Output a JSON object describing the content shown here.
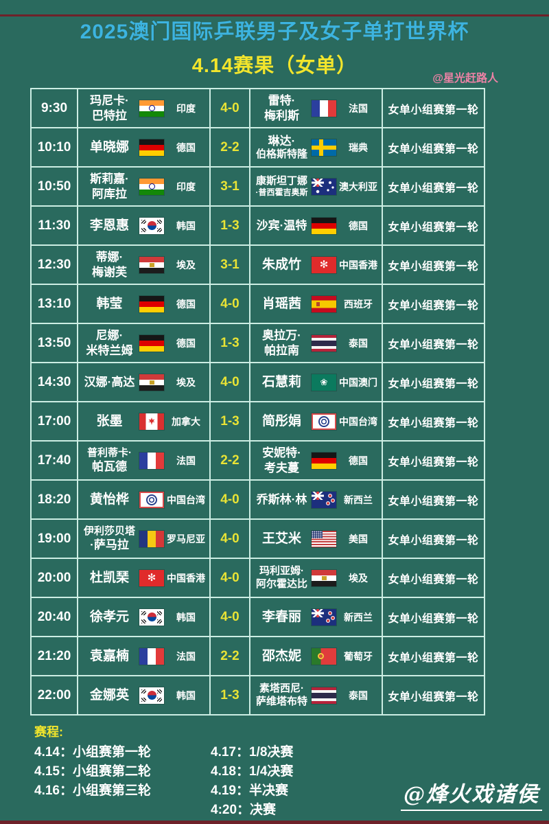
{
  "page": {
    "title": "2025澳门国际乒联男子及女子单打世界杯",
    "subtitle": "4.14赛果（女单）",
    "watermark_top": "@星光赶路人",
    "watermark_bottom": "@烽火戏诸侯"
  },
  "colors": {
    "background": "#2a6a5e",
    "title": "#3cb4e0",
    "subtitle": "#f2e52c",
    "score": "#e9e335",
    "watermark_top": "#ee82a6",
    "table_border": "#cdeee4",
    "edge_bar": "#6e2129"
  },
  "flag_names": {
    "in": "india-flag",
    "fr": "france-flag",
    "de": "germany-flag",
    "se": "sweden-flag",
    "au": "australia-flag",
    "kr": "south-korea-flag",
    "eg": "egypt-flag",
    "hk": "hong-kong-flag",
    "es": "spain-flag",
    "th": "thailand-flag",
    "mo": "macau-flag",
    "ca": "canada-flag",
    "tw": "chinese-taipei-flag",
    "nz": "new-zealand-flag",
    "ro": "romania-flag",
    "us": "usa-flag",
    "pt": "portugal-flag"
  },
  "matches": [
    {
      "time": "9:30",
      "p1": {
        "lines": [
          "玛尼卡·",
          "巴特拉"
        ],
        "flag": "in",
        "country": "印度"
      },
      "score": "4-0",
      "p2": {
        "lines": [
          "雷特·",
          "梅利斯"
        ],
        "flag": "fr",
        "country": "法国"
      },
      "round": "女单小组赛第一轮"
    },
    {
      "time": "10:10",
      "p1": {
        "lines": [
          "单晓娜"
        ],
        "flag": "de",
        "country": "德国"
      },
      "score": "2-2",
      "p2": {
        "lines": [
          "琳达·",
          "伯格斯特隆"
        ],
        "flag": "se",
        "country": "瑞典"
      },
      "round": "女单小组赛第一轮"
    },
    {
      "time": "10:50",
      "p1": {
        "lines": [
          "斯莉嘉·",
          "阿库拉"
        ],
        "flag": "in",
        "country": "印度"
      },
      "score": "3-1",
      "p2": {
        "lines": [
          "康斯坦丁娜",
          "·普西霍吉奥斯"
        ],
        "flag": "au",
        "country": "澳大利亚"
      },
      "round": "女单小组赛第一轮"
    },
    {
      "time": "11:30",
      "p1": {
        "lines": [
          "李恩惠"
        ],
        "flag": "kr",
        "country": "韩国"
      },
      "score": "1-3",
      "p2": {
        "lines": [
          "沙宾·温特"
        ],
        "flag": "de",
        "country": "德国"
      },
      "round": "女单小组赛第一轮"
    },
    {
      "time": "12:30",
      "p1": {
        "lines": [
          "蒂娜·",
          "梅谢芙"
        ],
        "flag": "eg",
        "country": "埃及"
      },
      "score": "3-1",
      "p2": {
        "lines": [
          "朱成竹"
        ],
        "flag": "hk",
        "country": "中国香港"
      },
      "round": "女单小组赛第一轮"
    },
    {
      "time": "13:10",
      "p1": {
        "lines": [
          "韩莹"
        ],
        "flag": "de",
        "country": "德国"
      },
      "score": "4-0",
      "p2": {
        "lines": [
          "肖瑶茜"
        ],
        "flag": "es",
        "country": "西班牙"
      },
      "round": "女单小组赛第一轮"
    },
    {
      "time": "13:50",
      "p1": {
        "lines": [
          "尼娜·",
          "米特兰姆"
        ],
        "flag": "de",
        "country": "德国"
      },
      "score": "1-3",
      "p2": {
        "lines": [
          "奥拉万·",
          "帕拉南"
        ],
        "flag": "th",
        "country": "泰国"
      },
      "round": "女单小组赛第一轮"
    },
    {
      "time": "14:30",
      "p1": {
        "lines": [
          "汉娜·高达"
        ],
        "flag": "eg",
        "country": "埃及"
      },
      "score": "4-0",
      "p2": {
        "lines": [
          "石慧莉"
        ],
        "flag": "mo",
        "country": "中国澳门"
      },
      "round": "女单小组赛第一轮"
    },
    {
      "time": "17:00",
      "p1": {
        "lines": [
          "张墨"
        ],
        "flag": "ca",
        "country": "加拿大"
      },
      "score": "1-3",
      "p2": {
        "lines": [
          "简彤娟"
        ],
        "flag": "tw",
        "country": "中国台湾"
      },
      "round": "女单小组赛第一轮"
    },
    {
      "time": "17:40",
      "p1": {
        "lines": [
          "普利蒂卡·",
          "帕瓦德"
        ],
        "flag": "fr",
        "country": "法国"
      },
      "score": "2-2",
      "p2": {
        "lines": [
          "安妮特·",
          "考夫蔓"
        ],
        "flag": "de",
        "country": "德国"
      },
      "round": "女单小组赛第一轮"
    },
    {
      "time": "18:20",
      "p1": {
        "lines": [
          "黄怡桦"
        ],
        "flag": "tw",
        "country": "中国台湾"
      },
      "score": "4-0",
      "p2": {
        "lines": [
          "乔斯林·林"
        ],
        "flag": "nz",
        "country": "新西兰"
      },
      "round": "女单小组赛第一轮"
    },
    {
      "time": "19:00",
      "p1": {
        "lines": [
          "伊利莎贝塔",
          "·萨马拉"
        ],
        "flag": "ro",
        "country": "罗马尼亚"
      },
      "score": "4-0",
      "p2": {
        "lines": [
          "王艾米"
        ],
        "flag": "us",
        "country": "美国"
      },
      "round": "女单小组赛第一轮"
    },
    {
      "time": "20:00",
      "p1": {
        "lines": [
          "杜凯琹"
        ],
        "flag": "hk",
        "country": "中国香港"
      },
      "score": "4-0",
      "p2": {
        "lines": [
          "玛利亚姆·",
          "阿尔霍达比"
        ],
        "flag": "eg",
        "country": "埃及"
      },
      "round": "女单小组赛第一轮"
    },
    {
      "time": "20:40",
      "p1": {
        "lines": [
          "徐孝元"
        ],
        "flag": "kr",
        "country": "韩国"
      },
      "score": "4-0",
      "p2": {
        "lines": [
          "李春丽"
        ],
        "flag": "nz",
        "country": "新西兰"
      },
      "round": "女单小组赛第一轮"
    },
    {
      "time": "21:20",
      "p1": {
        "lines": [
          "袁嘉楠"
        ],
        "flag": "fr",
        "country": "法国"
      },
      "score": "2-2",
      "p2": {
        "lines": [
          "邵杰妮"
        ],
        "flag": "pt",
        "country": "葡萄牙"
      },
      "round": "女单小组赛第一轮"
    },
    {
      "time": "22:00",
      "p1": {
        "lines": [
          "金娜英"
        ],
        "flag": "kr",
        "country": "韩国"
      },
      "score": "1-3",
      "p2": {
        "lines": [
          "素塔西尼·",
          "萨维塔布特"
        ],
        "flag": "th",
        "country": "泰国"
      },
      "round": "女单小组赛第一轮"
    }
  ],
  "schedule": {
    "heading": "赛程:",
    "left": [
      "4.14：小组赛第一轮",
      "4.15：小组赛第二轮",
      "4.16：小组赛第三轮"
    ],
    "right": [
      "4.17：1/8决赛",
      "4.18：1/4决赛",
      "4.19：半决赛",
      "4:20：决赛"
    ]
  }
}
